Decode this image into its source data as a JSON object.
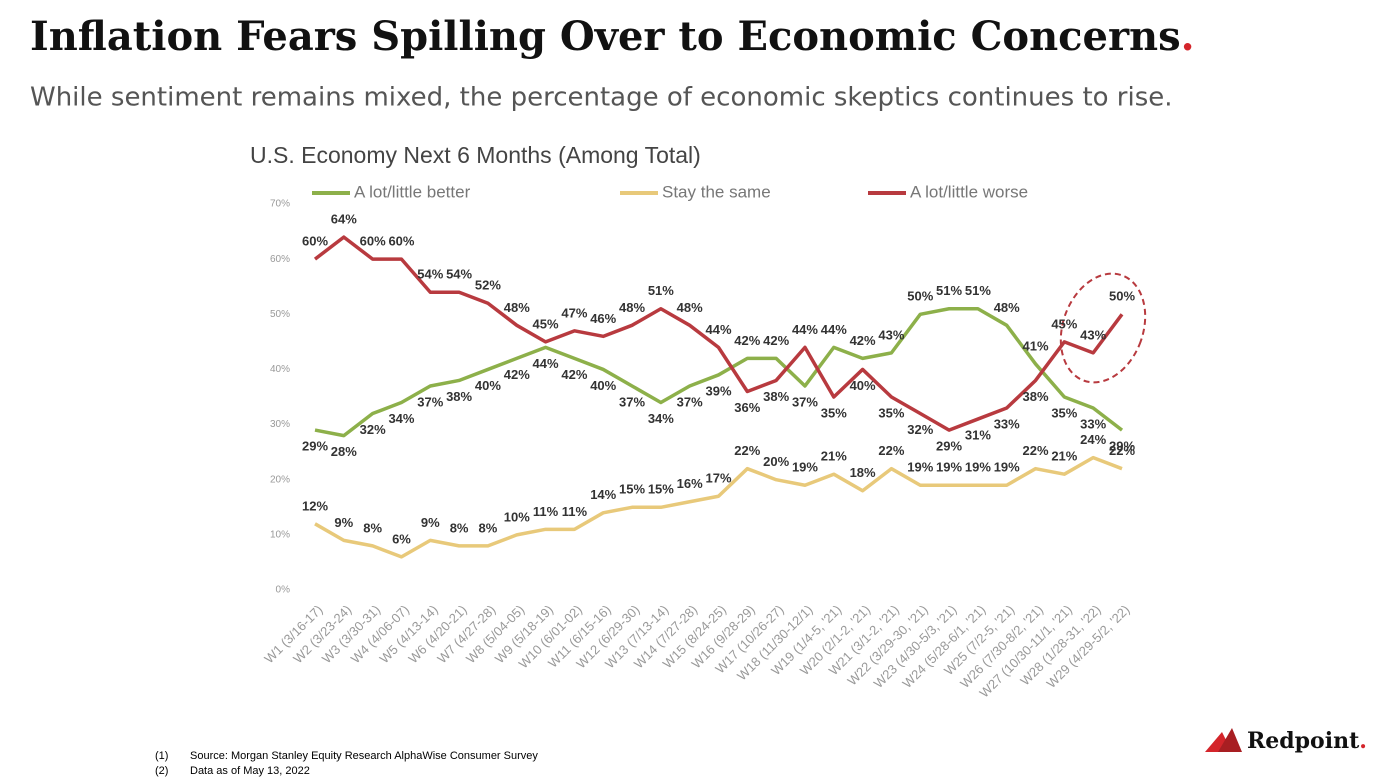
{
  "title": "Inflation Fears Spilling Over to Economic Concerns",
  "title_mark": ".",
  "subtitle": "While sentiment remains mixed, the percentage of economic skeptics continues to rise.",
  "footnotes": [
    [
      "(1)",
      "Source: Morgan Stanley Equity Research AlphaWise Consumer Survey"
    ],
    [
      "(2)",
      "Data as of May 13, 2022"
    ]
  ],
  "logo": "Redpoint",
  "logo_mark": ".",
  "chart_data": {
    "type": "line",
    "title": "U.S. Economy Next 6 Months (Among Total)",
    "categories": [
      "W1 (3/16-17)",
      "W2 (3/23-24)",
      "W3 (3/30-31)",
      "W4 (4/06-07)",
      "W5 (4/13-14)",
      "W6 (4/20-21)",
      "W7 (4/27-28)",
      "W8 (5/04-05)",
      "W9 (5/18-19)",
      "W10 (6/01-02)",
      "W11 (6/15-16)",
      "W12 (6/29-30)",
      "W13 (7/13-14)",
      "W14 (7/27-28)",
      "W15 (8/24-25)",
      "W16 (9/28-29)",
      "W17 (10/26-27)",
      "W18 (11/30-12/1)",
      "W19 (1/4-5, '21)",
      "W20 (2/1-2, '21)",
      "W21 (3/1-2, '21)",
      "W22 (3/29-30, '21)",
      "W23 (4/30-5/3, '21)",
      "W24 (5/28-6/1, '21)",
      "W25 (7/2-5, '21)",
      "W26 (7/30-8/2, '21)",
      "W27 (10/30-11/1, '21)",
      "W28 (1/28-31, '22)",
      "W29 (4/29-5/2, '22)"
    ],
    "series": [
      {
        "name": "A lot/little better",
        "color": "#8db04a",
        "values": [
          29,
          28,
          32,
          34,
          37,
          38,
          40,
          42,
          44,
          42,
          40,
          37,
          34,
          37,
          39,
          42,
          42,
          37,
          44,
          42,
          43,
          50,
          51,
          51,
          48,
          41,
          35,
          33,
          29
        ],
        "value_labels": [
          "29%",
          "28%",
          "32%",
          "34%",
          "37%",
          "38%",
          "40%",
          "42%",
          "44%",
          "42%",
          "40%",
          "37%",
          "34%",
          "37%",
          "39%",
          "42%",
          "42%",
          "37%",
          "44%",
          "42%",
          "43%",
          "50%",
          "51%",
          "51%",
          "48%",
          "41%",
          "35%",
          "33%",
          "29%"
        ]
      },
      {
        "name": "Stay the same",
        "color": "#e8c97a",
        "values": [
          12,
          9,
          8,
          6,
          9,
          8,
          8,
          10,
          11,
          11,
          14,
          15,
          15,
          16,
          17,
          22,
          20,
          19,
          21,
          18,
          22,
          19,
          19,
          19,
          19,
          22,
          21,
          24,
          22
        ],
        "value_labels": [
          "12%",
          "9%",
          "8%",
          "6%",
          "9%",
          "8%",
          "8%",
          "10%",
          "11%",
          "11%",
          "14%",
          "15%",
          "15%",
          "16%",
          "17%",
          "22%",
          "20%",
          "19%",
          "21%",
          "18%",
          "22%",
          "19%",
          "19%",
          "19%",
          "19%",
          "22%",
          "21%",
          "24%",
          "22%"
        ]
      },
      {
        "name": "A lot/little worse",
        "color": "#b83a3f",
        "values": [
          60,
          64,
          60,
          60,
          54,
          54,
          52,
          48,
          45,
          47,
          46,
          48,
          51,
          48,
          44,
          36,
          38,
          44,
          35,
          40,
          35,
          32,
          29,
          31,
          33,
          38,
          45,
          43,
          50
        ],
        "value_labels": [
          "60%",
          "64%",
          "60%",
          "60%",
          "54%",
          "54%",
          "52%",
          "48%",
          "45%",
          "47%",
          "46%",
          "48%",
          "51%",
          "48%",
          "44%",
          "36%",
          "38%",
          "44%",
          "35%",
          "40%",
          "35%",
          "32%",
          "29%",
          "31%",
          "33%",
          "38%",
          "45%",
          "43%",
          "50%"
        ]
      }
    ],
    "ylim": [
      0,
      70
    ],
    "yticks": [
      {
        "value": 0,
        "label": "0%"
      },
      {
        "value": 10,
        "label": "10%"
      },
      {
        "value": 20,
        "label": "20%"
      },
      {
        "value": 30,
        "label": "30%"
      },
      {
        "value": 40,
        "label": "40%"
      },
      {
        "value": 50,
        "label": "50%"
      },
      {
        "value": 60,
        "label": "60%"
      },
      {
        "value": 70,
        "label": "70%"
      }
    ],
    "grid": false,
    "legend": "top"
  }
}
